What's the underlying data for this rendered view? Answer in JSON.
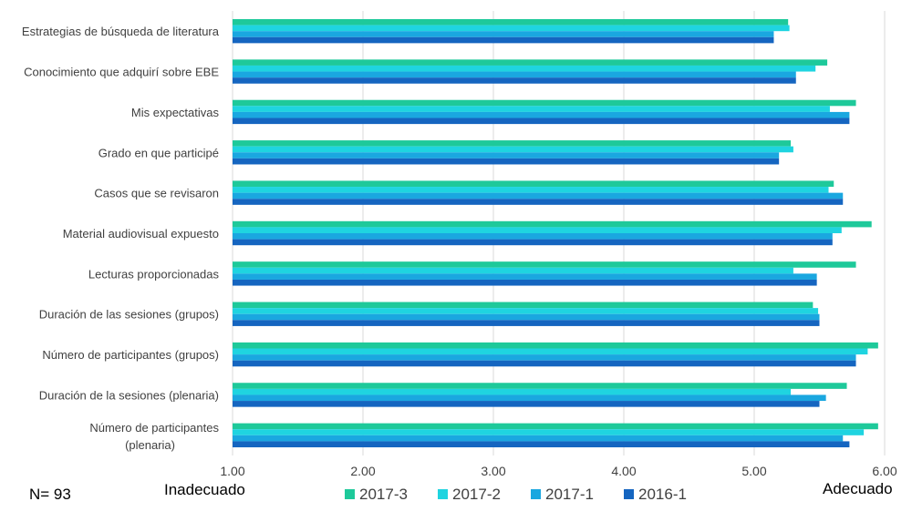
{
  "chart_data": {
    "type": "bar",
    "orientation": "horizontal",
    "categories": [
      "Estrategias de búsqueda de literatura",
      "Conocimiento que adquirí sobre EBE",
      "Mis expectativas",
      "Grado en que participé",
      "Casos que se revisaron",
      "Material audiovisual expuesto",
      "Lecturas proporcionadas",
      "Duración de las sesiones (grupos)",
      "Número de participantes (grupos)",
      "Duración de la sesiones (plenaria)",
      "Número de participantes (plenaria)"
    ],
    "series": [
      {
        "name": "2017-3",
        "color": "#1ec99a",
        "values": [
          5.26,
          5.56,
          5.78,
          5.28,
          5.61,
          5.9,
          5.78,
          5.45,
          5.95,
          5.71,
          5.95
        ]
      },
      {
        "name": "2017-2",
        "color": "#1fd4e0",
        "values": [
          5.27,
          5.47,
          5.58,
          5.3,
          5.57,
          5.67,
          5.3,
          5.49,
          5.87,
          5.28,
          5.84
        ]
      },
      {
        "name": "2017-1",
        "color": "#1aa7e0",
        "values": [
          5.15,
          5.32,
          5.73,
          5.19,
          5.68,
          5.6,
          5.48,
          5.5,
          5.78,
          5.55,
          5.68
        ]
      },
      {
        "name": "2016-1",
        "color": "#1565c0",
        "values": [
          5.15,
          5.32,
          5.73,
          5.19,
          5.68,
          5.6,
          5.48,
          5.5,
          5.78,
          5.5,
          5.73
        ]
      }
    ],
    "xlim": [
      1,
      6
    ],
    "xticks": [
      "1.00",
      "2.00",
      "3.00",
      "4.00",
      "5.00",
      "6.00"
    ],
    "grid": true,
    "legend": "bottom",
    "annotations": {
      "n": "N= 93",
      "left": "Inadecuado",
      "right": "Adecuado"
    }
  }
}
